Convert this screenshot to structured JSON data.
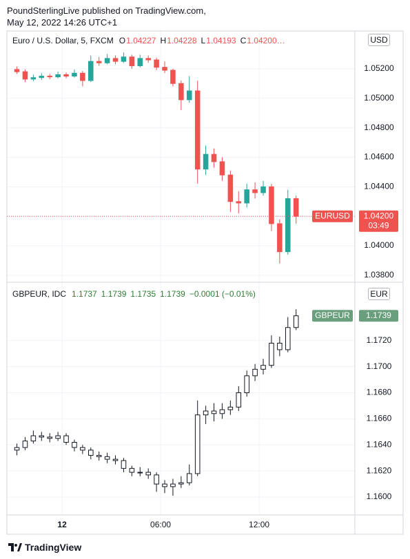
{
  "header": {
    "author_line": "PoundSterlingLive published on TradingView.com,",
    "date_line": "May 12, 2022 14:26 UTC+1"
  },
  "footer": {
    "brand": "TradingView"
  },
  "chart_data": [
    {
      "type": "candlestick",
      "legend": {
        "title": "Euro / U.S. Dollar, 5, FXCM",
        "color": "#ef5350",
        "items": [
          {
            "key": "O",
            "value": "1.04227"
          },
          {
            "key": "H",
            "value": "1.04228"
          },
          {
            "key": "L",
            "value": "1.04193"
          },
          {
            "key": "C",
            "value": "1.04200…"
          }
        ]
      },
      "currency": "USD",
      "up_color": "#26a69a",
      "down_color": "#ef5350",
      "x": [
        -3.0,
        -2.5,
        -2.0,
        -1.5,
        -1.0,
        -0.5,
        0.0,
        0.5,
        1.0,
        1.5,
        2.0,
        2.5,
        3.0,
        3.5,
        4.0,
        4.5,
        5.0,
        5.5,
        6.0,
        6.5,
        7.0,
        7.5,
        8.0,
        8.5,
        9.0,
        9.5,
        10.0,
        10.5,
        11.0,
        11.5,
        12.0,
        12.5,
        13.0,
        13.5,
        14.0
      ],
      "open": [
        1.05195,
        1.0518,
        1.0513,
        1.0514,
        1.0515,
        1.05145,
        1.0516,
        1.0515,
        1.0517,
        1.0512,
        1.0525,
        1.0524,
        1.0527,
        1.0525,
        1.0528,
        1.0522,
        1.0527,
        1.0526,
        1.0521,
        1.0519,
        1.051,
        1.0499,
        1.0505,
        1.0452,
        1.0462,
        1.0457,
        1.0448,
        1.043,
        1.0429,
        1.0438,
        1.0436,
        1.044,
        1.0415,
        1.0396,
        1.0432
      ],
      "high": [
        1.05215,
        1.05195,
        1.0516,
        1.0517,
        1.05165,
        1.0518,
        1.05175,
        1.05195,
        1.05185,
        1.0529,
        1.0528,
        1.053,
        1.0529,
        1.0531,
        1.05295,
        1.05295,
        1.0529,
        1.05275,
        1.0525,
        1.052,
        1.0512,
        1.0515,
        1.0512,
        1.0468,
        1.0466,
        1.046,
        1.0451,
        1.0437,
        1.0442,
        1.0443,
        1.0444,
        1.0442,
        1.0418,
        1.0438,
        1.0434
      ],
      "low": [
        1.05165,
        1.0511,
        1.05115,
        1.05125,
        1.0513,
        1.05135,
        1.05135,
        1.0514,
        1.0508,
        1.0511,
        1.0522,
        1.0523,
        1.0523,
        1.0524,
        1.052,
        1.0521,
        1.0524,
        1.0519,
        1.0517,
        1.0508,
        1.0492,
        1.0497,
        1.0442,
        1.0448,
        1.0453,
        1.0444,
        1.0423,
        1.0422,
        1.0426,
        1.0432,
        1.0434,
        1.041,
        1.0388,
        1.0394,
        1.0415
      ],
      "close": [
        1.0518,
        1.0513,
        1.0514,
        1.0515,
        1.05145,
        1.0516,
        1.0515,
        1.0517,
        1.0512,
        1.0525,
        1.0524,
        1.0527,
        1.0525,
        1.0528,
        1.0522,
        1.0527,
        1.0526,
        1.0521,
        1.0519,
        1.051,
        1.0499,
        1.0505,
        1.0452,
        1.0462,
        1.0457,
        1.0448,
        1.043,
        1.0429,
        1.0438,
        1.0436,
        1.044,
        1.0415,
        1.0396,
        1.0432,
        1.042
      ],
      "ylim": [
        1.03753,
        1.05456
      ],
      "yticks": [
        {
          "value": 1.038,
          "label": "1.03800"
        },
        {
          "value": 1.04,
          "label": "1.04000"
        },
        {
          "value": 1.042,
          "label": "1.04200"
        },
        {
          "value": 1.044,
          "label": "1.04400"
        },
        {
          "value": 1.046,
          "label": "1.04600"
        },
        {
          "value": 1.048,
          "label": "1.04800"
        },
        {
          "value": 1.05,
          "label": "1.05000"
        },
        {
          "value": 1.052,
          "label": "1.05200"
        }
      ],
      "grid": true,
      "symbol_tag": "EURUSD",
      "last_price": {
        "value": 1.042,
        "label": "1.04200"
      },
      "countdown": "03:49",
      "tag_color": "#ef5350"
    },
    {
      "type": "candlestick",
      "legend": {
        "title": "GBPEUR, IDC",
        "color": "#2e7d32",
        "items": [
          {
            "value": "1.1737"
          },
          {
            "value": "1.1739"
          },
          {
            "value": "1.1735"
          },
          {
            "value": "1.1739"
          },
          {
            "value": "−0.0001 (−0.01%)"
          }
        ]
      },
      "currency": "EUR",
      "up_color": "#131722",
      "down_color": "#131722",
      "x": [
        -3.0,
        -2.5,
        -2.0,
        -1.5,
        -1.0,
        -0.5,
        0.0,
        0.5,
        1.0,
        1.5,
        2.0,
        2.5,
        3.0,
        3.5,
        4.0,
        4.5,
        5.0,
        5.5,
        6.0,
        6.5,
        7.0,
        7.5,
        8.0,
        8.5,
        9.0,
        9.5,
        10.0,
        10.5,
        11.0,
        11.5,
        12.0,
        12.5,
        13.0,
        13.5,
        14.0
      ],
      "open": [
        1.1636,
        1.1638,
        1.1643,
        1.1647,
        1.1646,
        1.1645,
        1.1647,
        1.1642,
        1.1638,
        1.1636,
        1.1632,
        1.1631,
        1.1629,
        1.1628,
        1.1622,
        1.1619,
        1.1619,
        1.1617,
        1.161,
        1.1608,
        1.161,
        1.1611,
        1.1618,
        1.1663,
        1.1666,
        1.1664,
        1.1667,
        1.1669,
        1.168,
        1.1693,
        1.1698,
        1.1701,
        1.1718,
        1.1713,
        1.173
      ],
      "high": [
        1.1641,
        1.1646,
        1.1651,
        1.165,
        1.1649,
        1.165,
        1.1649,
        1.1644,
        1.164,
        1.1638,
        1.1635,
        1.1634,
        1.1632,
        1.163,
        1.1624,
        1.1623,
        1.1622,
        1.1619,
        1.1613,
        1.1614,
        1.1616,
        1.1625,
        1.1674,
        1.167,
        1.1672,
        1.1672,
        1.1674,
        1.1685,
        1.1697,
        1.1702,
        1.1706,
        1.1724,
        1.1723,
        1.1738,
        1.1744
      ],
      "low": [
        1.1632,
        1.1636,
        1.1641,
        1.1643,
        1.1642,
        1.1643,
        1.164,
        1.1635,
        1.1633,
        1.1629,
        1.1628,
        1.1626,
        1.1625,
        1.1619,
        1.1616,
        1.1616,
        1.1614,
        1.1604,
        1.1603,
        1.1601,
        1.1607,
        1.1609,
        1.1616,
        1.1656,
        1.1658,
        1.166,
        1.1663,
        1.1666,
        1.1677,
        1.1689,
        1.1694,
        1.1699,
        1.1708,
        1.1711,
        1.1728
      ],
      "close": [
        1.1638,
        1.1643,
        1.1647,
        1.1646,
        1.1645,
        1.1647,
        1.1642,
        1.1638,
        1.1636,
        1.1632,
        1.1631,
        1.1629,
        1.1628,
        1.1622,
        1.1619,
        1.1619,
        1.1617,
        1.161,
        1.1608,
        1.161,
        1.1611,
        1.1618,
        1.1663,
        1.1666,
        1.1664,
        1.1667,
        1.1669,
        1.168,
        1.1693,
        1.1698,
        1.1701,
        1.1718,
        1.1713,
        1.173,
        1.1739
      ],
      "ylim": [
        1.15863,
        1.17647
      ],
      "yticks": [
        {
          "value": 1.16,
          "label": "1.1600"
        },
        {
          "value": 1.162,
          "label": "1.1620"
        },
        {
          "value": 1.164,
          "label": "1.1640"
        },
        {
          "value": 1.166,
          "label": "1.1660"
        },
        {
          "value": 1.168,
          "label": "1.1680"
        },
        {
          "value": 1.17,
          "label": "1.1700"
        },
        {
          "value": 1.172,
          "label": "1.1720"
        }
      ],
      "grid": true,
      "symbol_tag": "GBPEUR",
      "last_price": 1.1739,
      "tag_color": "#6a9f7e",
      "xlim": [
        -3.36,
        17.83
      ],
      "xticks": [
        {
          "value": 0,
          "label": "12"
        },
        {
          "value": 6,
          "label": "06:00"
        },
        {
          "value": 12,
          "label": "12:00"
        }
      ]
    }
  ]
}
